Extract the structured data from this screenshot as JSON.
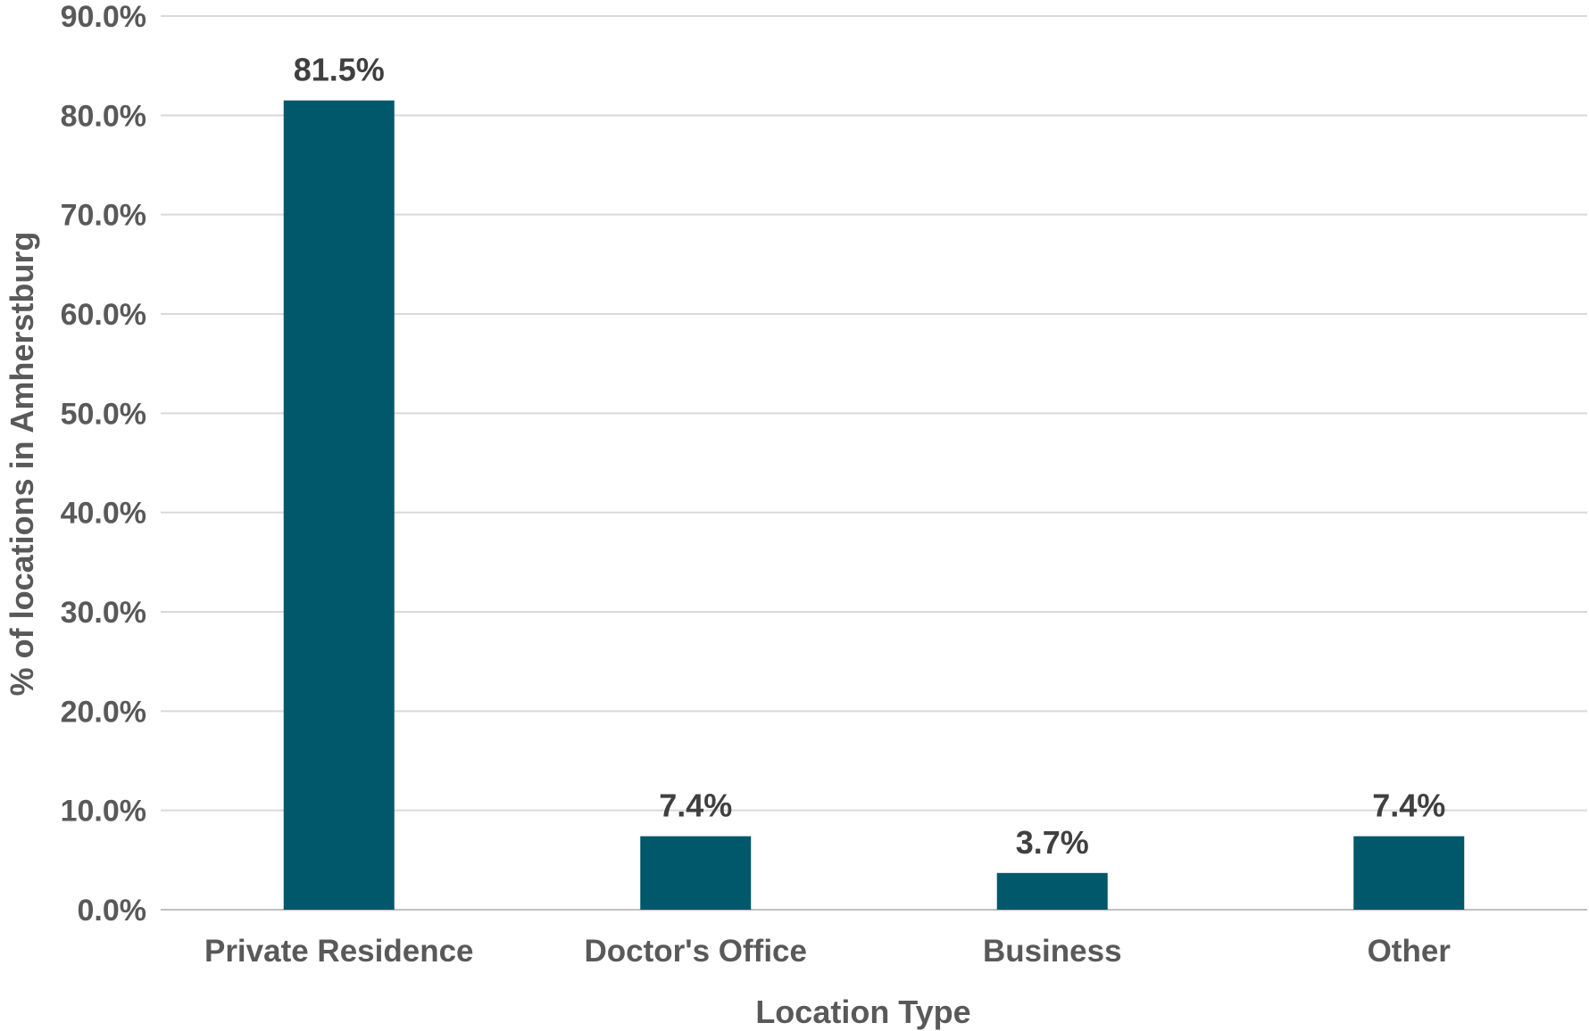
{
  "chart_data": {
    "type": "bar",
    "categories": [
      "Private Residence",
      "Doctor's Office",
      "Business",
      "Other"
    ],
    "series": [
      {
        "values": [
          81.5,
          7.4,
          3.7,
          7.4
        ],
        "data_labels": [
          "81.5%",
          "7.4%",
          "3.7%",
          "7.4%"
        ]
      }
    ],
    "xlabel": "Location Type",
    "ylabel": "% of locations in Amherstburg",
    "ylim": [
      0,
      90
    ],
    "yticks": [
      0,
      10,
      20,
      30,
      40,
      50,
      60,
      70,
      80,
      90
    ],
    "ytick_labels": [
      "0.0%",
      "10.0%",
      "20.0%",
      "30.0%",
      "40.0%",
      "50.0%",
      "60.0%",
      "70.0%",
      "80.0%",
      "90.0%"
    ],
    "grid": true,
    "legend": "none",
    "colors": {
      "bar": "#02586b",
      "grid": "#d9d9d9",
      "text": "#595959",
      "data_label": "#404040"
    }
  }
}
